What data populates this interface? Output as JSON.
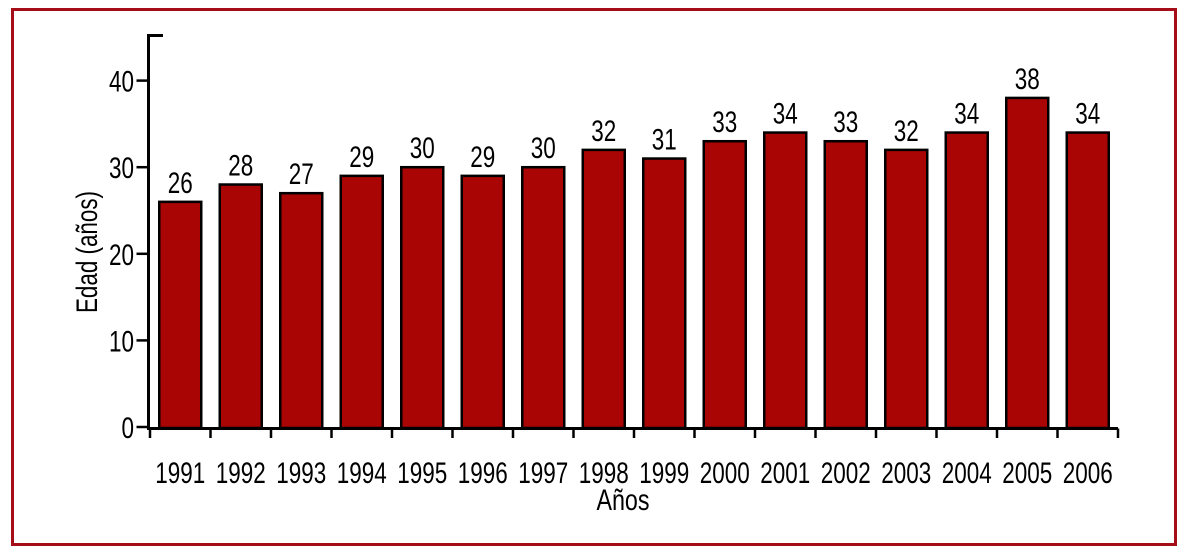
{
  "chart_data": {
    "type": "bar",
    "title": "",
    "xlabel": "Años",
    "ylabel": "Edad (años)",
    "categories": [
      "1991",
      "1992",
      "1993",
      "1994",
      "1995",
      "1996",
      "1997",
      "1998",
      "1999",
      "2000",
      "2001",
      "2002",
      "2003",
      "2004",
      "2005",
      "2006"
    ],
    "values": [
      26,
      28,
      27,
      29,
      30,
      29,
      30,
      32,
      31,
      33,
      34,
      33,
      32,
      34,
      38,
      34
    ],
    "value_labels_shown": true,
    "yticks": [
      0,
      10,
      20,
      30,
      40
    ],
    "ylim": [
      0,
      45
    ],
    "grid": false,
    "legend": null,
    "colors": {
      "bar_fill": "#A90505",
      "bar_edge": "#000000",
      "axis": "#000000",
      "text": "#000000",
      "frame_border": "#A50D18",
      "background": "#FFFFFF"
    }
  }
}
